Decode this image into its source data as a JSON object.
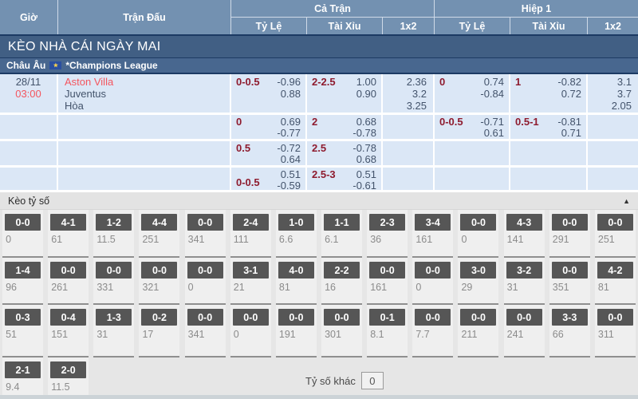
{
  "colors": {
    "header_blue": "#7391b1",
    "navy_line": "#1c3a63",
    "banner_blue": "#415f84",
    "league_blue": "#48678f",
    "row_light_blue": "#dbe7f6",
    "handicap_maroon": "#8e1b2e",
    "hot_red": "#f4555e",
    "text_dark": "#43536b",
    "score_button_gray": "#565656",
    "score_value_gray": "#8b8b8b"
  },
  "table_header": {
    "time": "Giờ",
    "match": "Trận Đấu",
    "full_time": "Cả Trận",
    "first_half": "Hiệp 1",
    "odds_col": "Tỷ Lệ",
    "ou_col": "Tài Xỉu",
    "x2_col": "1x2"
  },
  "banner": {
    "title": "KÈO NHÀ CÁI NGÀY MAI"
  },
  "league": {
    "region": "Châu Âu",
    "flag": "eu-flag",
    "flag_glyph": "★",
    "name": "*Champions League"
  },
  "match": {
    "date": "28/11",
    "time": "03:00",
    "home": "Aston Villa",
    "away": "Juventus",
    "draw": "Hòa"
  },
  "odds": {
    "rows": [
      {
        "ft_hdp": {
          "label": "0-0.5",
          "top": "-0.96",
          "bottom": "0.88"
        },
        "ft_ou": {
          "label": "2-2.5",
          "top": "1.00",
          "bottom": "0.90"
        },
        "ft_1x2": [
          "2.36",
          "3.2",
          "3.25"
        ],
        "h1_hdp": {
          "label": "0",
          "top": "0.74",
          "bottom": "-0.84"
        },
        "h1_ou": {
          "label": "1",
          "top": "-0.82",
          "bottom": "0.72"
        },
        "h1_1x2": [
          "3.1",
          "3.7",
          "2.05"
        ]
      },
      {
        "ft_hdp": {
          "label": "0",
          "top": "0.69",
          "bottom": "-0.77"
        },
        "ft_ou": {
          "label": "2",
          "top": "0.68",
          "bottom": "-0.78"
        },
        "h1_hdp": {
          "label": "0-0.5",
          "top": "-0.71",
          "bottom": "0.61"
        },
        "h1_ou": {
          "label": "0.5-1",
          "top": "-0.81",
          "bottom": "0.71"
        }
      },
      {
        "ft_hdp": {
          "label": "0.5",
          "top": "-0.72",
          "bottom": "0.64"
        },
        "ft_ou": {
          "label": "2.5",
          "top": "-0.78",
          "bottom": "0.68"
        }
      },
      {
        "ft_hdp": {
          "label": "0-0.5",
          "top": "0.51",
          "bottom": "-0.59"
        },
        "ft_ou": {
          "label": "2.5-3",
          "top": "0.51",
          "bottom": "-0.61"
        }
      }
    ]
  },
  "score_board": {
    "title": "Kèo tỷ số",
    "collapse_icon": "▲",
    "other_label": "Tỷ số khác",
    "other_value": "0",
    "rows": [
      [
        [
          "0-0",
          "0"
        ],
        [
          "4-1",
          "61"
        ],
        [
          "1-2",
          "11.5"
        ],
        [
          "4-4",
          "251"
        ],
        [
          "0-0",
          "341"
        ],
        [
          "2-4",
          "111"
        ],
        [
          "1-0",
          "6.6"
        ],
        [
          "1-1",
          "6.1"
        ],
        [
          "2-3",
          "36"
        ],
        [
          "3-4",
          "161"
        ],
        [
          "0-0",
          "0"
        ],
        [
          "4-3",
          "141"
        ],
        [
          "0-0",
          "291"
        ],
        [
          "0-0",
          "251"
        ]
      ],
      [
        [
          "1-4",
          "96"
        ],
        [
          "0-0",
          "261"
        ],
        [
          "0-0",
          "331"
        ],
        [
          "0-0",
          "321"
        ],
        [
          "0-0",
          "0"
        ],
        [
          "3-1",
          "21"
        ],
        [
          "4-0",
          "81"
        ],
        [
          "2-2",
          "16"
        ],
        [
          "0-0",
          "161"
        ],
        [
          "0-0",
          "0"
        ],
        [
          "3-0",
          "29"
        ],
        [
          "3-2",
          "31"
        ],
        [
          "0-0",
          "351"
        ],
        [
          "4-2",
          "81"
        ]
      ],
      [
        [
          "0-3",
          "51"
        ],
        [
          "0-4",
          "151"
        ],
        [
          "1-3",
          "31"
        ],
        [
          "0-2",
          "17"
        ],
        [
          "0-0",
          "341"
        ],
        [
          "0-0",
          "0"
        ],
        [
          "0-0",
          "191"
        ],
        [
          "0-0",
          "301"
        ],
        [
          "0-1",
          "8.1"
        ],
        [
          "0-0",
          "7.7"
        ],
        [
          "0-0",
          "211"
        ],
        [
          "0-0",
          "241"
        ],
        [
          "3-3",
          "66"
        ],
        [
          "0-0",
          "311"
        ]
      ],
      [
        [
          "2-1",
          "9.4"
        ],
        [
          "2-0",
          "11.5"
        ]
      ]
    ]
  }
}
